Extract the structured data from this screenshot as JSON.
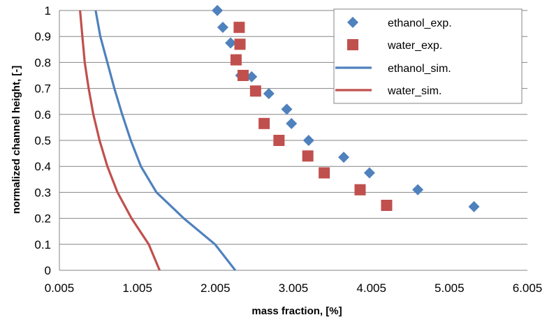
{
  "chart_data": {
    "type": "scatter",
    "xlabel": "mass fraction, [%]",
    "ylabel": "normalized channel height, [-]",
    "xlim": [
      0.005,
      6.005
    ],
    "ylim": [
      0,
      1
    ],
    "xticks": [
      0.005,
      1.005,
      2.005,
      3.005,
      4.005,
      5.005,
      6.005
    ],
    "xtick_labels": [
      "0.005",
      "1.005",
      "2.005",
      "3.005",
      "4.005",
      "5.005",
      "6.005"
    ],
    "yticks": [
      0,
      0.1,
      0.2,
      0.3,
      0.4,
      0.5,
      0.6,
      0.7,
      0.8,
      0.9,
      1
    ],
    "ytick_labels": [
      "0",
      "0.1",
      "0.2",
      "0.3",
      "0.4",
      "0.5",
      "0.6",
      "0.7",
      "0.8",
      "0.9",
      "1"
    ],
    "grid": true,
    "legend_position": "top-right",
    "series": [
      {
        "name": "ethanol_exp.",
        "kind": "scatter",
        "marker": "diamond",
        "color": "#4f81bd",
        "points": [
          [
            2.03,
            1.0
          ],
          [
            2.1,
            0.935
          ],
          [
            2.2,
            0.875
          ],
          [
            2.27,
            0.81
          ],
          [
            2.33,
            0.75
          ],
          [
            2.47,
            0.745
          ],
          [
            2.69,
            0.68
          ],
          [
            2.92,
            0.62
          ],
          [
            2.98,
            0.565
          ],
          [
            3.2,
            0.5
          ],
          [
            3.65,
            0.435
          ],
          [
            3.98,
            0.375
          ],
          [
            4.6,
            0.31
          ],
          [
            5.32,
            0.245
          ]
        ]
      },
      {
        "name": "water_exp.",
        "kind": "scatter",
        "marker": "square",
        "color": "#c0504d",
        "points": [
          [
            2.31,
            0.935
          ],
          [
            2.32,
            0.87
          ],
          [
            2.27,
            0.81
          ],
          [
            2.36,
            0.75
          ],
          [
            2.52,
            0.69
          ],
          [
            2.63,
            0.565
          ],
          [
            2.82,
            0.5
          ],
          [
            3.19,
            0.44
          ],
          [
            3.4,
            0.375
          ],
          [
            3.86,
            0.31
          ],
          [
            4.2,
            0.25
          ]
        ]
      },
      {
        "name": "ethanol_sim.",
        "kind": "line",
        "color": "#4f81bd",
        "points": [
          [
            2.26,
            0.0
          ],
          [
            2.0,
            0.1
          ],
          [
            1.6,
            0.2
          ],
          [
            1.25,
            0.3
          ],
          [
            1.05,
            0.4
          ],
          [
            0.92,
            0.5
          ],
          [
            0.81,
            0.6
          ],
          [
            0.71,
            0.7
          ],
          [
            0.62,
            0.8
          ],
          [
            0.53,
            0.9
          ],
          [
            0.47,
            1.0
          ]
        ]
      },
      {
        "name": "water_sim.",
        "kind": "line",
        "color": "#c0504d",
        "points": [
          [
            1.29,
            0.0
          ],
          [
            1.15,
            0.1
          ],
          [
            0.93,
            0.2
          ],
          [
            0.75,
            0.3
          ],
          [
            0.62,
            0.4
          ],
          [
            0.52,
            0.5
          ],
          [
            0.44,
            0.6
          ],
          [
            0.38,
            0.7
          ],
          [
            0.33,
            0.8
          ],
          [
            0.3,
            0.9
          ],
          [
            0.27,
            1.0
          ]
        ]
      }
    ]
  }
}
